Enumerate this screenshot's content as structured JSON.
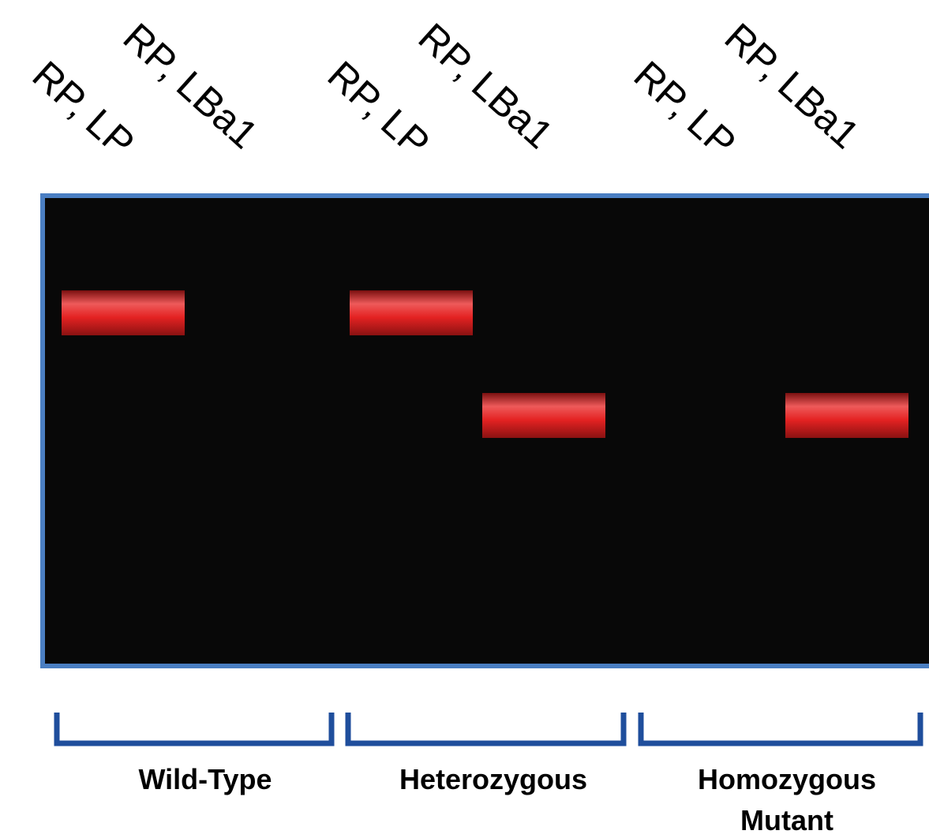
{
  "groups": [
    {
      "lanes": [
        "RP, LP",
        "RP, LBa1"
      ],
      "label": [
        "Wild-Type"
      ]
    },
    {
      "lanes": [
        "RP, LP",
        "RP, LBa1"
      ],
      "label": [
        "Heterozygous"
      ]
    },
    {
      "lanes": [
        "RP, LP",
        "RP, LBa1"
      ],
      "label": [
        "Homozygous",
        "Mutant"
      ]
    }
  ]
}
